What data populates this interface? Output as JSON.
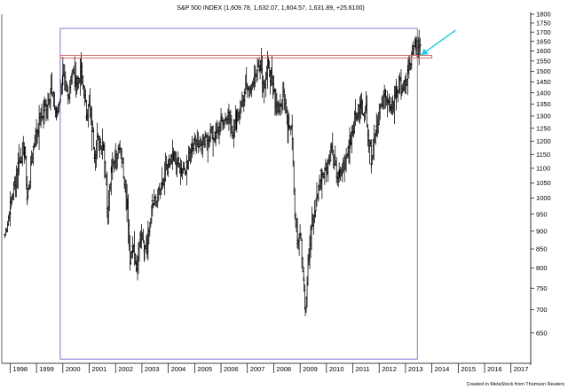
{
  "chart_data": {
    "type": "ohlc-bar",
    "title": "S&P 500 INDEX (1,609.78, 1,632.07, 1,604.57, 1,631.89, +25.6100)",
    "scale": "log",
    "ylim": [
      590,
      1800
    ],
    "xlim": [
      1997.75,
      2017.75
    ],
    "y_ticks": [
      650,
      700,
      750,
      800,
      850,
      900,
      950,
      1000,
      1050,
      1100,
      1150,
      1200,
      1250,
      1300,
      1350,
      1400,
      1450,
      1500,
      1550,
      1600,
      1650,
      1700,
      1750,
      1800
    ],
    "x_ticks": [
      "1998",
      "1999",
      "2000",
      "2001",
      "2002",
      "2003",
      "2004",
      "2005",
      "2006",
      "2007",
      "2008",
      "2009",
      "2010",
      "2011",
      "2012",
      "2013",
      "2014",
      "2015",
      "2016",
      "2017"
    ],
    "credit": "Created in MetaStock from Thomson Reuters",
    "highlight_box": {
      "from": 1999.9,
      "to": 2013.45,
      "low": 598,
      "high": 1720
    },
    "resistance_zone": {
      "from": 1999.9,
      "to": 2014.0,
      "low": 1565,
      "high": 1578
    },
    "arrow": {
      "from_x": 2014.9,
      "from_y": 1710,
      "to_x": 2013.6,
      "to_y": 1580,
      "color": "#22c7e6"
    },
    "grid": false,
    "colors": {
      "bars": "#000000",
      "box": "#6e6ec8",
      "zone": "#d45a5a",
      "arrow": "#22c7e6"
    },
    "price_path": [
      [
        1997.8,
        890
      ],
      [
        1998.0,
        970
      ],
      [
        1998.3,
        1110
      ],
      [
        1998.55,
        1180
      ],
      [
        1998.65,
        1000
      ],
      [
        1998.9,
        1190
      ],
      [
        1999.0,
        1240
      ],
      [
        1999.3,
        1330
      ],
      [
        1999.55,
        1410
      ],
      [
        1999.75,
        1300
      ],
      [
        2000.0,
        1470
      ],
      [
        2000.2,
        1380
      ],
      [
        2000.35,
        1510
      ],
      [
        2000.5,
        1440
      ],
      [
        2000.7,
        1500
      ],
      [
        2000.9,
        1310
      ],
      [
        2001.0,
        1350
      ],
      [
        2001.2,
        1160
      ],
      [
        2001.3,
        1200
      ],
      [
        2001.55,
        1190
      ],
      [
        2001.7,
        960
      ],
      [
        2001.85,
        1120
      ],
      [
        2002.0,
        1130
      ],
      [
        2002.2,
        1170
      ],
      [
        2002.45,
        980
      ],
      [
        2002.55,
        810
      ],
      [
        2002.65,
        860
      ],
      [
        2002.8,
        790
      ],
      [
        2002.95,
        890
      ],
      [
        2003.1,
        840
      ],
      [
        2003.2,
        860
      ],
      [
        2003.4,
        980
      ],
      [
        2003.6,
        1000
      ],
      [
        2003.8,
        1060
      ],
      [
        2004.0,
        1120
      ],
      [
        2004.2,
        1140
      ],
      [
        2004.5,
        1100
      ],
      [
        2004.7,
        1110
      ],
      [
        2004.9,
        1190
      ],
      [
        2005.1,
        1200
      ],
      [
        2005.3,
        1180
      ],
      [
        2005.6,
        1230
      ],
      [
        2005.8,
        1210
      ],
      [
        2006.0,
        1270
      ],
      [
        2006.3,
        1300
      ],
      [
        2006.45,
        1240
      ],
      [
        2006.6,
        1280
      ],
      [
        2006.9,
        1410
      ],
      [
        2007.1,
        1420
      ],
      [
        2007.35,
        1500
      ],
      [
        2007.5,
        1550
      ],
      [
        2007.6,
        1440
      ],
      [
        2007.8,
        1520
      ],
      [
        2007.9,
        1470
      ],
      [
        2008.05,
        1370
      ],
      [
        2008.25,
        1320
      ],
      [
        2008.4,
        1400
      ],
      [
        2008.55,
        1270
      ],
      [
        2008.7,
        1230
      ],
      [
        2008.8,
        960
      ],
      [
        2008.9,
        880
      ],
      [
        2009.0,
        900
      ],
      [
        2009.15,
        740
      ],
      [
        2009.2,
        690
      ],
      [
        2009.3,
        810
      ],
      [
        2009.45,
        920
      ],
      [
        2009.6,
        980
      ],
      [
        2009.8,
        1080
      ],
      [
        2010.0,
        1110
      ],
      [
        2010.2,
        1170
      ],
      [
        2010.35,
        1090
      ],
      [
        2010.5,
        1060
      ],
      [
        2010.65,
        1110
      ],
      [
        2010.9,
        1200
      ],
      [
        2011.1,
        1300
      ],
      [
        2011.3,
        1340
      ],
      [
        2011.5,
        1320
      ],
      [
        2011.6,
        1220
      ],
      [
        2011.7,
        1140
      ],
      [
        2011.9,
        1260
      ],
      [
        2012.0,
        1310
      ],
      [
        2012.25,
        1400
      ],
      [
        2012.45,
        1320
      ],
      [
        2012.65,
        1410
      ],
      [
        2012.8,
        1440
      ],
      [
        2012.95,
        1420
      ],
      [
        2013.1,
        1500
      ],
      [
        2013.25,
        1570
      ],
      [
        2013.4,
        1650
      ],
      [
        2013.48,
        1610
      ],
      [
        2013.55,
        1632
      ]
    ]
  }
}
